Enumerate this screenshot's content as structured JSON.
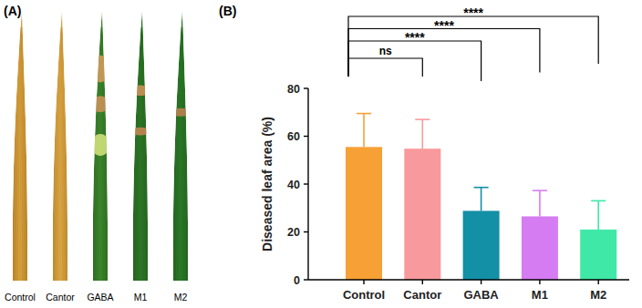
{
  "panel_a": {
    "title": "(A)",
    "labels": [
      "Control",
      "Cantor",
      "GABA",
      "M1",
      "M2"
    ]
  },
  "chart_data": {
    "type": "bar",
    "title": "(B)",
    "y_label": "Diseased leaf area (%)",
    "categories": [
      "Control",
      "Cantor",
      "GABA",
      "M1",
      "M2"
    ],
    "values": [
      55.5,
      54.8,
      28.8,
      26.5,
      21.0
    ],
    "errors": [
      14.0,
      12.2,
      9.8,
      10.8,
      12.0
    ],
    "colors": [
      "#f7a035",
      "#f89a9d",
      "#138fa6",
      "#d67cf2",
      "#3fe8a7"
    ],
    "ylim": [
      0,
      80
    ],
    "yticks": [
      0,
      20,
      40,
      60,
      80
    ],
    "grid": false,
    "annotations": [
      {
        "from": "Control",
        "to": "Cantor",
        "label": "ns"
      },
      {
        "from": "Control",
        "to": "GABA",
        "label": "****"
      },
      {
        "from": "Control",
        "to": "M1",
        "label": "****"
      },
      {
        "from": "Control",
        "to": "M2",
        "label": "****"
      }
    ]
  }
}
